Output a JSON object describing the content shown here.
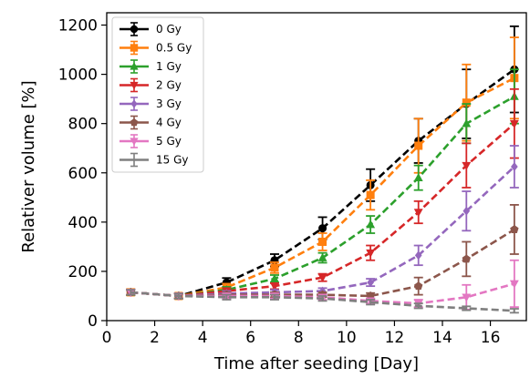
{
  "chart_data": {
    "type": "line",
    "xlabel": "Time after seeding [Day]",
    "ylabel": "Relativer volume [%]",
    "xlim": [
      0,
      17.5
    ],
    "ylim": [
      0,
      1250
    ],
    "xticks": [
      0,
      2,
      4,
      6,
      8,
      10,
      12,
      14,
      16
    ],
    "yticks": [
      0,
      200,
      400,
      600,
      800,
      1000,
      1200
    ],
    "grid": false,
    "legend": "top-left",
    "x": [
      1,
      3,
      5,
      7,
      9,
      11,
      13,
      15,
      17
    ],
    "series": [
      {
        "name": "0 Gy",
        "color": "#000000",
        "marker": "circle",
        "values": [
          115,
          100,
          155,
          245,
          375,
          550,
          730,
          880,
          1020
        ],
        "errors": [
          12,
          10,
          18,
          25,
          45,
          65,
          90,
          140,
          175
        ]
      },
      {
        "name": "0.5 Gy",
        "color": "#ff7f0e",
        "marker": "square",
        "values": [
          115,
          100,
          135,
          215,
          320,
          510,
          710,
          885,
          985
        ],
        "errors": [
          12,
          10,
          15,
          22,
          35,
          60,
          110,
          155,
          165
        ]
      },
      {
        "name": "1 Gy",
        "color": "#2ca02c",
        "marker": "triangle-up",
        "values": [
          115,
          100,
          125,
          170,
          255,
          390,
          580,
          800,
          910
        ],
        "errors": [
          10,
          10,
          12,
          15,
          20,
          35,
          50,
          80,
          110
        ]
      },
      {
        "name": "2 Gy",
        "color": "#d62728",
        "marker": "triangle-down",
        "values": [
          115,
          100,
          120,
          140,
          175,
          275,
          440,
          630,
          800
        ],
        "errors": [
          10,
          10,
          12,
          12,
          15,
          30,
          45,
          90,
          140
        ]
      },
      {
        "name": "3 Gy",
        "color": "#9467bd",
        "marker": "diamond",
        "values": [
          115,
          100,
          110,
          115,
          120,
          155,
          265,
          445,
          625
        ],
        "errors": [
          10,
          10,
          10,
          10,
          12,
          15,
          40,
          80,
          85
        ]
      },
      {
        "name": "4 Gy",
        "color": "#8c564b",
        "marker": "pentagon",
        "values": [
          115,
          100,
          105,
          105,
          105,
          100,
          140,
          250,
          370
        ],
        "errors": [
          10,
          10,
          10,
          10,
          10,
          12,
          35,
          70,
          100
        ]
      },
      {
        "name": "5 Gy",
        "color": "#e377c2",
        "marker": "triangle-down",
        "values": [
          115,
          100,
          100,
          100,
          95,
          80,
          70,
          95,
          150
        ],
        "errors": [
          10,
          10,
          10,
          10,
          10,
          10,
          15,
          50,
          95
        ]
      },
      {
        "name": "15 Gy",
        "color": "#7f7f7f",
        "marker": "none",
        "values": [
          115,
          100,
          95,
          95,
          90,
          75,
          60,
          50,
          40
        ],
        "errors": [
          10,
          10,
          10,
          10,
          10,
          10,
          10,
          8,
          8
        ]
      }
    ]
  }
}
